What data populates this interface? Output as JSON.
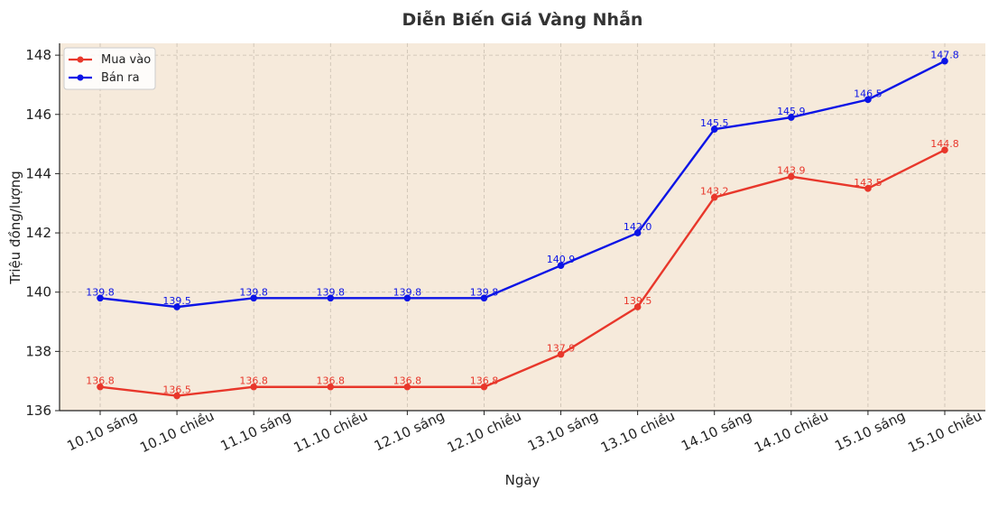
{
  "chart_data": {
    "type": "line",
    "title": "Diễn Biến Giá Vàng Nhẫn",
    "xlabel": "Ngày",
    "ylabel": "Triệu đồng/lượng",
    "categories": [
      "10.10 sáng",
      "10.10 chiều",
      "11.10 sáng",
      "11.10 chiều",
      "12.10 sáng",
      "12.10 chiều",
      "13.10 sáng",
      "13.10 chiều",
      "14.10 sáng",
      "14.10 chiều",
      "15.10 sáng",
      "15.10 chiều"
    ],
    "series": [
      {
        "name": "Mua vào",
        "color": "#e8372b",
        "values": [
          136.8,
          136.5,
          136.8,
          136.8,
          136.8,
          136.8,
          137.9,
          139.5,
          143.2,
          143.9,
          143.5,
          144.8
        ]
      },
      {
        "name": "Bán ra",
        "color": "#0b14e6",
        "values": [
          139.8,
          139.5,
          139.8,
          139.8,
          139.8,
          139.8,
          140.9,
          142.0,
          145.5,
          145.9,
          146.5,
          147.8
        ]
      }
    ],
    "ylim": [
      136,
      148.4
    ],
    "yticks": [
      "136",
      "138",
      "140",
      "142",
      "144",
      "146",
      "148"
    ],
    "grid": true,
    "legend_position": "top-left",
    "background_color": "#f6eadb"
  }
}
